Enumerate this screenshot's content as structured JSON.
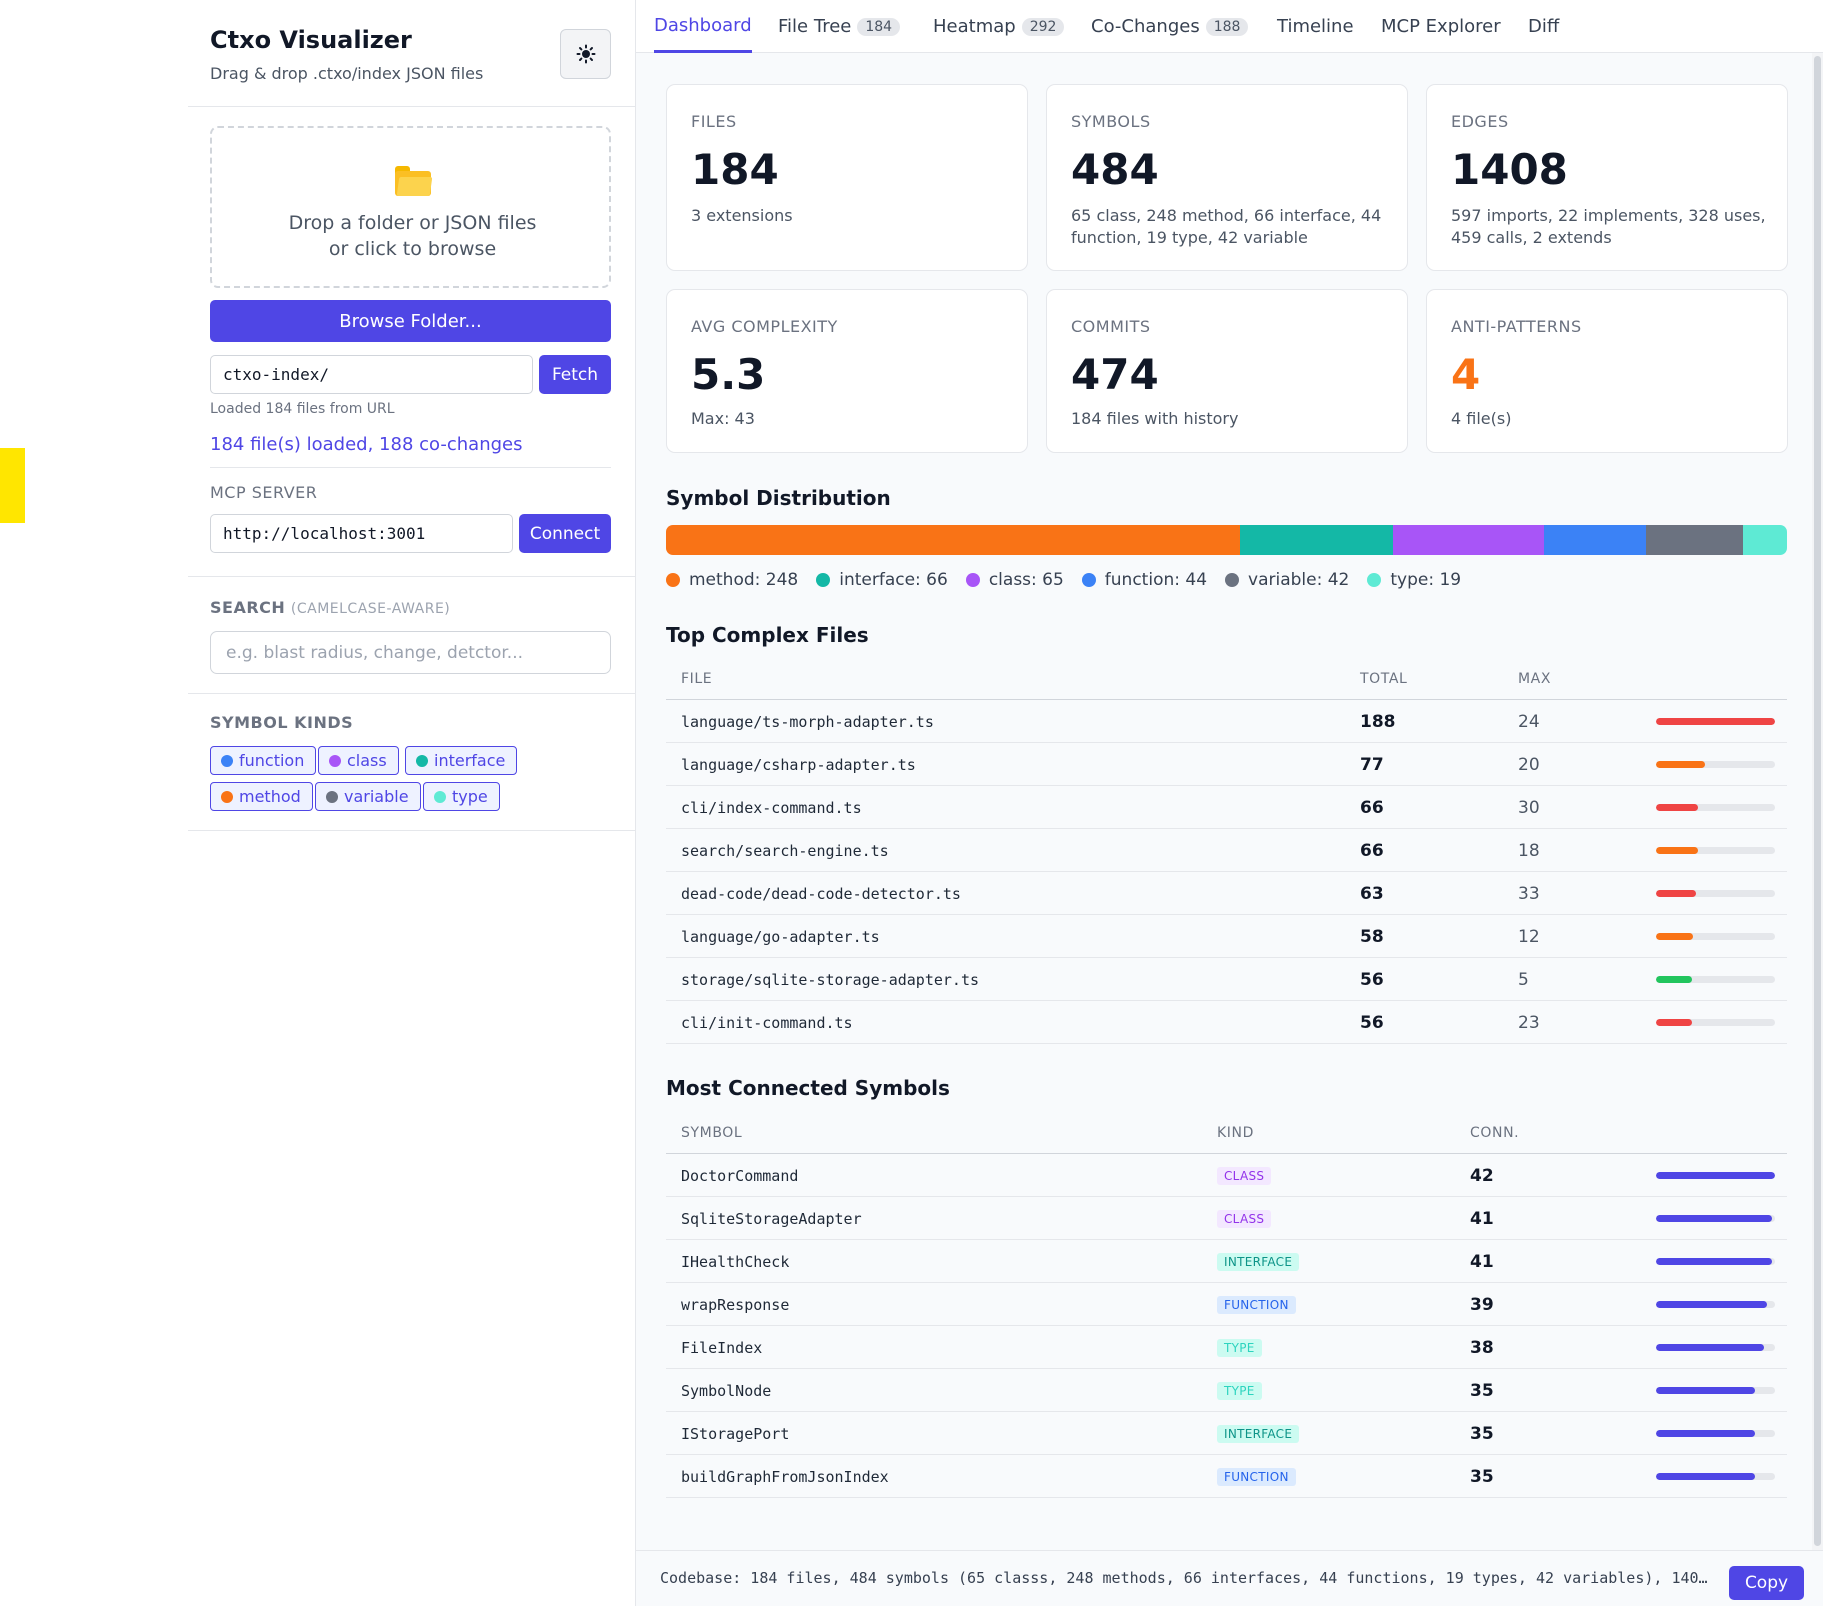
{
  "sidebar": {
    "title": "Ctxo Visualizer",
    "subtitle": "Drag & drop .ctxo/index JSON files",
    "theme_icon": "sun-icon",
    "dropzone": {
      "icon": "folder-icon",
      "line1": "Drop a folder or JSON files",
      "line2": "or click to browse"
    },
    "browse_label": "Browse Folder...",
    "url_input": "ctxo-index/",
    "fetch_label": "Fetch",
    "url_note": "Loaded 184 files from URL",
    "loaded_text": "184 file(s) loaded, 188 co-changes",
    "mcp": {
      "label": "MCP SERVER",
      "url": "http://localhost:3001",
      "connect_label": "Connect"
    },
    "search": {
      "label": "SEARCH",
      "label_sub": "(CAMELCASE-AWARE)",
      "placeholder": "e.g. blast radius, change, detctor..."
    },
    "kinds": {
      "label": "SYMBOL KINDS",
      "chips": [
        {
          "label": "function",
          "color": "#3b82f6"
        },
        {
          "label": "class",
          "color": "#a855f7"
        },
        {
          "label": "interface",
          "color": "#14b8a6"
        },
        {
          "label": "method",
          "color": "#f97316"
        },
        {
          "label": "variable",
          "color": "#6b7280"
        },
        {
          "label": "type",
          "color": "#5eead4"
        }
      ]
    }
  },
  "tabs": [
    {
      "label": "Dashboard",
      "badge": "",
      "active": true
    },
    {
      "label": "File Tree",
      "badge": "184"
    },
    {
      "label": "Heatmap",
      "badge": "292"
    },
    {
      "label": "Co-Changes",
      "badge": "188"
    },
    {
      "label": "Timeline",
      "badge": ""
    },
    {
      "label": "MCP Explorer",
      "badge": ""
    },
    {
      "label": "Diff",
      "badge": ""
    }
  ],
  "cards": [
    {
      "label": "FILES",
      "value": "184",
      "detail": "3 extensions"
    },
    {
      "label": "SYMBOLS",
      "value": "484",
      "detail": "65 class, 248 method, 66 interface, 44 function, 19 type, 42 variable"
    },
    {
      "label": "EDGES",
      "value": "1408",
      "detail": "597 imports, 22 implements, 328 uses, 459 calls, 2 extends"
    },
    {
      "label": "AVG COMPLEXITY",
      "value": "5.3",
      "detail": "Max: 43"
    },
    {
      "label": "COMMITS",
      "value": "474",
      "detail": "184 files with history"
    },
    {
      "label": "ANTI-PATTERNS",
      "value": "4",
      "detail": "4 file(s)",
      "value_color": "#f97316"
    }
  ],
  "distribution": {
    "title": "Symbol Distribution",
    "items": [
      {
        "label": "method: 248",
        "value": 248,
        "color": "#f97316"
      },
      {
        "label": "interface: 66",
        "value": 66,
        "color": "#14b8a6"
      },
      {
        "label": "class: 65",
        "value": 65,
        "color": "#a855f7"
      },
      {
        "label": "function: 44",
        "value": 44,
        "color": "#3b82f6"
      },
      {
        "label": "variable: 42",
        "value": 42,
        "color": "#6b7280"
      },
      {
        "label": "type: 19",
        "value": 19,
        "color": "#5eead4"
      }
    ]
  },
  "complex_files": {
    "title": "Top Complex Files",
    "headers": [
      "FILE",
      "TOTAL",
      "MAX"
    ],
    "rows": [
      {
        "file": "language/ts-morph-adapter.ts",
        "total": "188",
        "max": "24",
        "fill": 1.0,
        "color": "#ef4444"
      },
      {
        "file": "language/csharp-adapter.ts",
        "total": "77",
        "max": "20",
        "fill": 0.41,
        "color": "#f97316"
      },
      {
        "file": "cli/index-command.ts",
        "total": "66",
        "max": "30",
        "fill": 0.35,
        "color": "#ef4444"
      },
      {
        "file": "search/search-engine.ts",
        "total": "66",
        "max": "18",
        "fill": 0.35,
        "color": "#f97316"
      },
      {
        "file": "dead-code/dead-code-detector.ts",
        "total": "63",
        "max": "33",
        "fill": 0.335,
        "color": "#ef4444"
      },
      {
        "file": "language/go-adapter.ts",
        "total": "58",
        "max": "12",
        "fill": 0.31,
        "color": "#f97316"
      },
      {
        "file": "storage/sqlite-storage-adapter.ts",
        "total": "56",
        "max": "5",
        "fill": 0.3,
        "color": "#22c55e"
      },
      {
        "file": "cli/init-command.ts",
        "total": "56",
        "max": "23",
        "fill": 0.3,
        "color": "#ef4444"
      }
    ]
  },
  "connected": {
    "title": "Most Connected Symbols",
    "headers": [
      "SYMBOL",
      "KIND",
      "CONN."
    ],
    "rows": [
      {
        "symbol": "DoctorCommand",
        "kind": "CLASS",
        "conn": "42",
        "fill": 1.0
      },
      {
        "symbol": "SqliteStorageAdapter",
        "kind": "CLASS",
        "conn": "41",
        "fill": 0.976
      },
      {
        "symbol": "IHealthCheck",
        "kind": "INTERFACE",
        "conn": "41",
        "fill": 0.976
      },
      {
        "symbol": "wrapResponse",
        "kind": "FUNCTION",
        "conn": "39",
        "fill": 0.929
      },
      {
        "symbol": "FileIndex",
        "kind": "TYPE",
        "conn": "38",
        "fill": 0.905
      },
      {
        "symbol": "SymbolNode",
        "kind": "TYPE",
        "conn": "35",
        "fill": 0.833
      },
      {
        "symbol": "IStoragePort",
        "kind": "INTERFACE",
        "conn": "35",
        "fill": 0.833
      },
      {
        "symbol": "buildGraphFromJsonIndex",
        "kind": "FUNCTION",
        "conn": "35",
        "fill": 0.833
      }
    ],
    "bar_color": "#4f46e5",
    "kind_styles": {
      "CLASS": {
        "bg": "#f3e8ff",
        "fg": "#9333ea"
      },
      "INTERFACE": {
        "bg": "#ccfbf1",
        "fg": "#0d9488"
      },
      "FUNCTION": {
        "bg": "#dbeafe",
        "fg": "#2563eb"
      },
      "TYPE": {
        "bg": "#ccfbf1",
        "fg": "#2dd4bf"
      }
    }
  },
  "footer": {
    "text": "Codebase: 184 files, 484 symbols (65 classs, 248 methods, 66 interfaces, 44 functions, 19 types, 42 variables), 140…",
    "copy_label": "Copy"
  }
}
